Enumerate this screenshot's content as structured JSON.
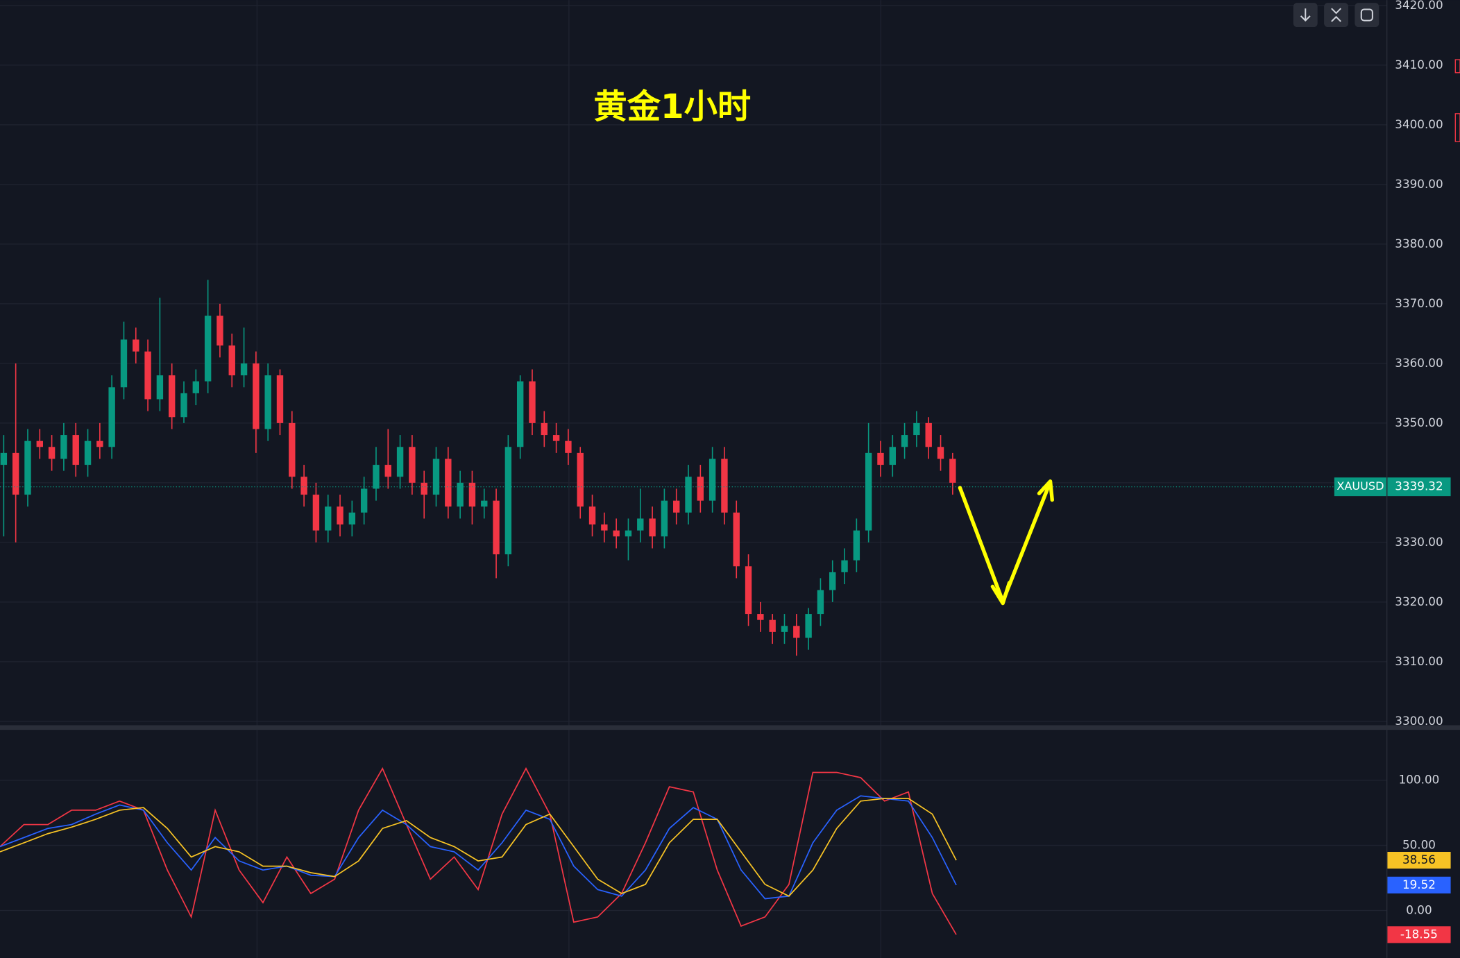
{
  "chart_data": [
    {
      "type": "candlestick",
      "title": "黄金1小时",
      "symbol": "XAUUSD",
      "last_price": 3339.32,
      "up_color": "#089981",
      "down_color": "#f23645",
      "grid": true,
      "ylim": [
        3299.2,
        3420.9
      ],
      "yticks": [
        {
          "value": 3300,
          "label": "3300.00"
        },
        {
          "value": 3310,
          "label": "3310.00"
        },
        {
          "value": 3320,
          "label": "3320.00"
        },
        {
          "value": 3330,
          "label": "3330.00"
        },
        {
          "value": 3340,
          "label": "3340.00"
        },
        {
          "value": 3350,
          "label": "3350.00"
        },
        {
          "value": 3360,
          "label": "3360.00"
        },
        {
          "value": 3370,
          "label": "3370.00"
        },
        {
          "value": 3380,
          "label": "3380.00"
        },
        {
          "value": 3390,
          "label": "3390.00"
        },
        {
          "value": 3400,
          "label": "3400.00"
        },
        {
          "value": 3410,
          "label": "3410.00"
        },
        {
          "value": 3420,
          "label": "3420.00"
        }
      ],
      "open": [
        3343,
        3345,
        3338,
        3347,
        3346,
        3344,
        3348,
        3343,
        3347,
        3346,
        3356,
        3364,
        3362,
        3354,
        3358,
        3351,
        3355,
        3357,
        3368,
        3363,
        3358,
        3360,
        3349,
        3358,
        3350,
        3341,
        3338,
        3332,
        3336,
        3333,
        3335,
        3339,
        3343,
        3341,
        3346,
        3340,
        3338,
        3344,
        3336,
        3340,
        3336,
        3337,
        3328,
        3346,
        3357,
        3350,
        3348,
        3347,
        3345,
        3336,
        3333,
        3332,
        3331,
        3332,
        3334,
        3331,
        3337,
        3335,
        3341,
        3337,
        3344,
        3335,
        3326,
        3318,
        3317,
        3315,
        3316,
        3314,
        3318,
        3322,
        3325,
        3327,
        3332,
        3345,
        3343,
        3346,
        3348,
        3350,
        3346,
        3344
      ],
      "high": [
        3348,
        3360,
        3349,
        3349,
        3348,
        3350,
        3350,
        3349,
        3350,
        3358,
        3367,
        3366,
        3364,
        3371,
        3360,
        3357,
        3359,
        3374,
        3370,
        3365,
        3366,
        3362,
        3360,
        3359,
        3352,
        3343,
        3340,
        3338,
        3338,
        3337,
        3341,
        3346,
        3349,
        3348,
        3348,
        3342,
        3346,
        3346,
        3342,
        3342,
        3339,
        3339,
        3348,
        3358,
        3359,
        3352,
        3350,
        3349,
        3346,
        3338,
        3335,
        3334,
        3334,
        3339,
        3336,
        3339,
        3339,
        3343,
        3343,
        3346,
        3346,
        3337,
        3328,
        3320,
        3318,
        3318,
        3318,
        3319,
        3324,
        3327,
        3329,
        3334,
        3350,
        3347,
        3348,
        3350,
        3352,
        3351,
        3348,
        3345
      ],
      "low": [
        3331,
        3330,
        3336,
        3344,
        3342,
        3342,
        3341,
        3341,
        3344,
        3344,
        3354,
        3360,
        3352,
        3352,
        3349,
        3350,
        3353,
        3355,
        3361,
        3356,
        3356,
        3345,
        3347,
        3348,
        3339,
        3336,
        3330,
        3330,
        3331,
        3331,
        3333,
        3337,
        3339,
        3339,
        3338,
        3334,
        3336,
        3334,
        3334,
        3333,
        3334,
        3324,
        3326,
        3344,
        3348,
        3346,
        3345,
        3343,
        3334,
        3331,
        3330,
        3329,
        3327,
        3330,
        3329,
        3329,
        3333,
        3333,
        3335,
        3335,
        3333,
        3324,
        3316,
        3315,
        3313,
        3313,
        3311,
        3312,
        3316,
        3320,
        3323,
        3325,
        3330,
        3341,
        3341,
        3344,
        3346,
        3344,
        3342,
        3338
      ],
      "close": [
        3345,
        3338,
        3347,
        3346,
        3344,
        3348,
        3343,
        3347,
        3346,
        3356,
        3364,
        3362,
        3354,
        3358,
        3351,
        3355,
        3357,
        3368,
        3363,
        3358,
        3360,
        3349,
        3358,
        3350,
        3341,
        3338,
        3332,
        3336,
        3333,
        3335,
        3339,
        3343,
        3341,
        3346,
        3340,
        3338,
        3344,
        3336,
        3340,
        3336,
        3337,
        3328,
        3346,
        3357,
        3350,
        3348,
        3347,
        3345,
        3336,
        3333,
        3332,
        3331,
        3332,
        3334,
        3331,
        3337,
        3335,
        3341,
        3337,
        3344,
        3335,
        3326,
        3318,
        3317,
        3315,
        3316,
        3314,
        3318,
        3322,
        3325,
        3327,
        3332,
        3345,
        3343,
        3346,
        3348,
        3350,
        3346,
        3344,
        3340
      ]
    },
    {
      "type": "line",
      "grid": true,
      "ylim": [
        -36.4,
        137.9
      ],
      "yticks": [
        {
          "value": 0,
          "label": "0.00"
        },
        {
          "value": 50,
          "label": "50.00"
        },
        {
          "value": 100,
          "label": "100.00"
        }
      ],
      "series": [
        {
          "color": "#f23645",
          "values": [
            49,
            66,
            66,
            77,
            77,
            84,
            77,
            31,
            -5,
            77,
            31,
            6,
            41,
            13,
            24,
            77,
            109,
            66,
            24,
            41,
            16,
            74,
            109,
            74,
            -9,
            -5,
            13,
            52,
            95,
            91,
            31,
            -12,
            -5,
            20,
            106,
            106,
            102,
            84,
            91,
            13,
            -18.55
          ]
        },
        {
          "color": "#2962ff",
          "values": [
            49,
            56,
            63,
            66,
            74,
            81,
            77,
            52,
            31,
            56,
            38,
            31,
            34,
            27,
            26,
            56,
            77,
            66,
            49,
            45,
            31,
            52,
            77,
            70,
            34,
            16,
            11,
            31,
            63,
            79,
            70,
            31,
            9,
            11,
            52,
            77,
            88,
            86,
            84,
            56,
            19.52
          ]
        },
        {
          "color": "#f7c325",
          "values": [
            45,
            52,
            59,
            64,
            70,
            77,
            79,
            63,
            41,
            49,
            45,
            34,
            34,
            29,
            26,
            38,
            63,
            69,
            56,
            49,
            38,
            41,
            66,
            74,
            49,
            24,
            13,
            20,
            52,
            70,
            70,
            45,
            20,
            11,
            31,
            63,
            84,
            86,
            86,
            74,
            38.56
          ]
        }
      ]
    }
  ]
}
